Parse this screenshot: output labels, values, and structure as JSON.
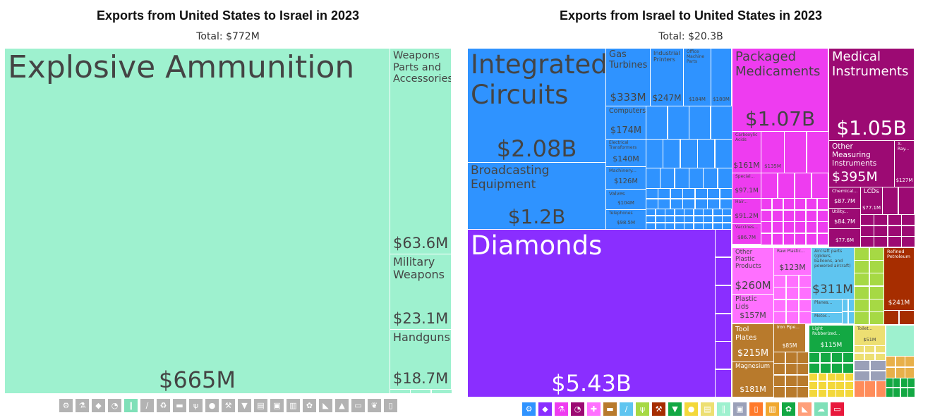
{
  "left": {
    "title": "Exports from United States to Israel in 2023",
    "total": "Total: $772M"
  },
  "right": {
    "title": "Exports from Israel to United States in 2023",
    "total": "Total: $20.3B"
  },
  "colors": {
    "weapons": "#9ef1cf",
    "weapons_dark": "#7fe0b8",
    "machines": "#2f93ff",
    "precious": "#8a2eff",
    "chemicals": "#ee3cf0",
    "instruments": "#9c0a73",
    "plastics": "#ff70ff",
    "transport": "#5fc5f0",
    "metals": "#b87a2c",
    "textiles": "#13a843",
    "vegetable": "#a6d944",
    "mineral": "#a62d00",
    "misc": "#eddf72",
    "stone": "#9aa0b8",
    "gray_legend": "#b3b3b3"
  },
  "chart_data": [
    {
      "type": "treemap",
      "title": "Exports from United States to Israel in 2023",
      "subtitle": "Total: $772M",
      "items": [
        {
          "name": "Explosive Ammunition",
          "value_label": "$665M",
          "value": 665
        },
        {
          "name": "Weapons Parts and Accessories",
          "value_label": "$63.6M",
          "value": 63.6
        },
        {
          "name": "Military Weapons",
          "value_label": "$23.1M",
          "value": 23.1
        },
        {
          "name": "Handguns",
          "value_label": "$18.7M",
          "value": 18.7
        }
      ],
      "legend_icons": [
        "gear-icon",
        "flask-icon",
        "diamond-icon",
        "gauge-icon",
        "weapon-icon",
        "transport-icon",
        "recycle-icon",
        "anvil-icon",
        "grain-icon",
        "fruit-icon",
        "pickaxe-icon",
        "shirt-icon",
        "document-icon",
        "box-icon",
        "train-icon",
        "paw-icon",
        "shoe-icon",
        "hat-icon",
        "car-icon",
        "leaf-icon",
        "bottle-icon"
      ]
    },
    {
      "type": "treemap",
      "title": "Exports from Israel to United States in 2023",
      "subtitle": "Total: $20.3B",
      "items": [
        {
          "name": "Integrated Circuits",
          "value_label": "$2.08B",
          "value": 2080
        },
        {
          "name": "Broadcasting Equipment",
          "value_label": "$1.2B",
          "value": 1200
        },
        {
          "name": "Gas Turbines",
          "value_label": "$333M",
          "value": 333
        },
        {
          "name": "Industrial Printers",
          "value_label": "$247M",
          "value": 247
        },
        {
          "name": "Office Machine Parts",
          "value_label": "$184M",
          "value": 184
        },
        {
          "name": "",
          "value_label": "$180M",
          "value": 180
        },
        {
          "name": "Computers",
          "value_label": "$174M",
          "value": 174
        },
        {
          "name": "Electrical Transformers",
          "value_label": "$140M",
          "value": 140
        },
        {
          "name": "Machinery...",
          "value_label": "$126M",
          "value": 126
        },
        {
          "name": "Valves",
          "value_label": "$104M",
          "value": 104
        },
        {
          "name": "Telephones",
          "value_label": "$98.5M",
          "value": 98.5
        },
        {
          "name": "Diamonds",
          "value_label": "$5.43B",
          "value": 5430
        },
        {
          "name": "Packaged Medicaments",
          "value_label": "$1.07B",
          "value": 1070
        },
        {
          "name": "Carboxylic Acids",
          "value_label": "$161M",
          "value": 161
        },
        {
          "name": "",
          "value_label": "$135M",
          "value": 135
        },
        {
          "name": "Special...",
          "value_label": "$97.1M",
          "value": 97.1
        },
        {
          "name": "Hair...",
          "value_label": "$91.2M",
          "value": 91.2
        },
        {
          "name": "Vaccines...",
          "value_label": "$86.7M",
          "value": 86.7
        },
        {
          "name": "Medical Instruments",
          "value_label": "$1.05B",
          "value": 1050
        },
        {
          "name": "Other Measuring Instruments",
          "value_label": "$395M",
          "value": 395
        },
        {
          "name": "X-Ray...",
          "value_label": "$127M",
          "value": 127
        },
        {
          "name": "Chemical...",
          "value_label": "$87.7M",
          "value": 87.7
        },
        {
          "name": "LCDs",
          "value_label": "$77.1M",
          "value": 77.1
        },
        {
          "name": "Utility...",
          "value_label": "$84.7M",
          "value": 84.7
        },
        {
          "name": "",
          "value_label": "$77.6M",
          "value": 77.6
        },
        {
          "name": "Other Plastic Products",
          "value_label": "$260M",
          "value": 260
        },
        {
          "name": "Raw Plastic...",
          "value_label": "$123M",
          "value": 123
        },
        {
          "name": "Plastic Lids",
          "value_label": "$157M",
          "value": 157
        },
        {
          "name": "Aircraft parts (gliders, balloons, and powered aircraft)",
          "value_label": "$311M",
          "value": 311
        },
        {
          "name": "Planes...",
          "value_label": "",
          "value": null
        },
        {
          "name": "Motor...",
          "value_label": "",
          "value": null
        },
        {
          "name": "Refined Petroleum",
          "value_label": "$241M",
          "value": 241
        },
        {
          "name": "Tool Plates",
          "value_label": "$215M",
          "value": 215
        },
        {
          "name": "Iron Pipe...",
          "value_label": "$85M",
          "value": 85
        },
        {
          "name": "Magnesium",
          "value_label": "$181M",
          "value": 181
        },
        {
          "name": "Light Rubberized...",
          "value_label": "$115M",
          "value": 115
        },
        {
          "name": "Toilet...",
          "value_label": "$51M",
          "value": 51
        }
      ],
      "legend_icons": [
        "gear-icon",
        "diamond-icon",
        "flask-icon",
        "gauge-icon",
        "plastic-icon",
        "anvil-icon",
        "transport-icon",
        "grain-icon",
        "pickaxe-icon",
        "shirt-icon",
        "fruit-icon",
        "document-icon",
        "weapon-icon",
        "box-icon",
        "bottle-icon",
        "train-icon",
        "paw-icon",
        "shoe-icon",
        "sheep-icon",
        "car-icon"
      ]
    }
  ]
}
